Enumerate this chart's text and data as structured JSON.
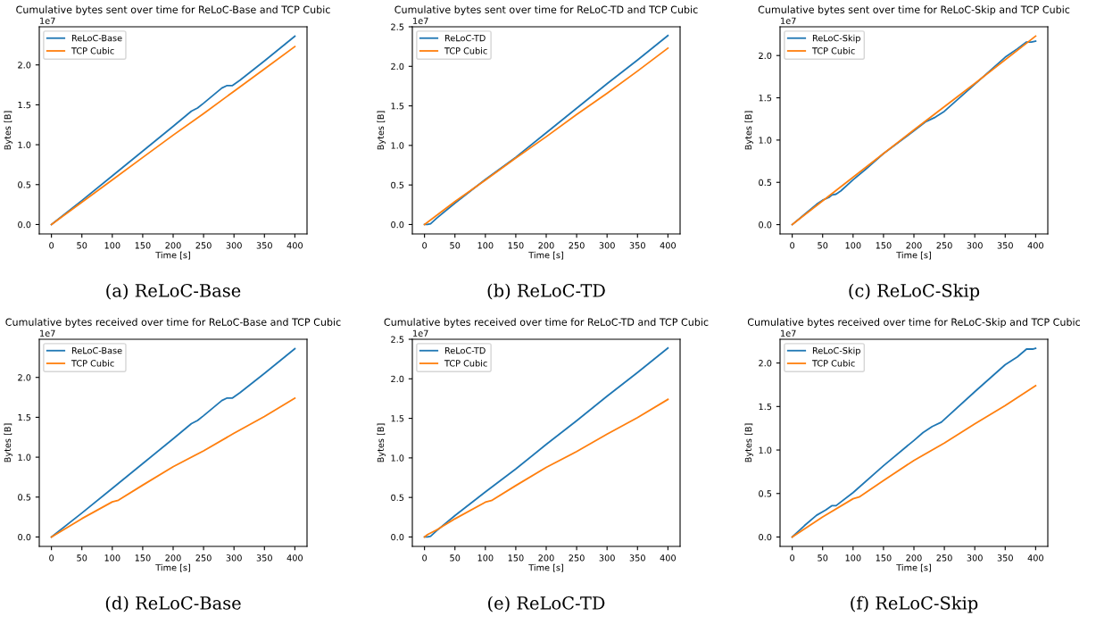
{
  "chart_data": [
    {
      "type": "line",
      "title": "Cumulative bytes sent over time for ReLoC-Base and TCP Cubic",
      "xlabel": "Time [s]",
      "ylabel": "Bytes [B]",
      "annotations": [
        "1e7",
        "(a) ReLoC-Base"
      ],
      "legend": "top left",
      "grid": false,
      "xlim": [
        -20,
        420
      ],
      "xticks": [
        0,
        50,
        100,
        150,
        200,
        250,
        300,
        350,
        400
      ],
      "ylim": [
        -0.118,
        2.478
      ],
      "yticks": [
        {
          "value": 0,
          "label": "0.0"
        },
        0.5,
        {
          "value": 1,
          "label": "1.0"
        },
        1.5,
        {
          "value": 2,
          "label": "2.0"
        }
      ],
      "series": [
        {
          "name": "ReLoC-Base",
          "color": "#1f77b4",
          "x": [
            0,
            50,
            100,
            150,
            200,
            230,
            240,
            250,
            280,
            288,
            297,
            310,
            350,
            400
          ],
          "values": [
            0,
            0.3,
            0.61,
            0.92,
            1.23,
            1.42,
            1.46,
            1.52,
            1.71,
            1.74,
            1.74,
            1.81,
            2.05,
            2.36
          ]
        },
        {
          "name": "TCP Cubic",
          "color": "#ff7f0e",
          "x": [
            0,
            50,
            100,
            150,
            200,
            250,
            300,
            350,
            400
          ],
          "values": [
            0,
            0.28,
            0.56,
            0.84,
            1.12,
            1.39,
            1.67,
            1.95,
            2.23
          ]
        }
      ]
    },
    {
      "type": "line",
      "title": "Cumulative bytes sent over time for ReLoC-TD and TCP Cubic",
      "xlabel": "Time [s]",
      "ylabel": "Bytes [B]",
      "annotations": [
        "1e7",
        "(b) ReLoC-TD"
      ],
      "legend": "top left",
      "grid": false,
      "xlim": [
        -20,
        420
      ],
      "xticks": [
        0,
        50,
        100,
        150,
        200,
        250,
        300,
        350,
        400
      ],
      "ylim": [
        -0.119,
        2.5
      ],
      "yticks": [
        {
          "value": 0,
          "label": "0.0"
        },
        0.5,
        {
          "value": 1,
          "label": "1.0"
        },
        1.5,
        {
          "value": 2,
          "label": "2.0"
        },
        2.5
      ],
      "series": [
        {
          "name": "ReLoC-TD",
          "color": "#1f77b4",
          "x": [
            0,
            5,
            10,
            20,
            50,
            100,
            150,
            200,
            250,
            300,
            350,
            400
          ],
          "values": [
            0,
            0,
            0.01,
            0.08,
            0.27,
            0.57,
            0.85,
            1.16,
            1.47,
            1.78,
            2.08,
            2.39
          ]
        },
        {
          "name": "TCP Cubic",
          "color": "#ff7f0e",
          "x": [
            0,
            50,
            100,
            150,
            200,
            250,
            300,
            350,
            400
          ],
          "values": [
            0,
            0.29,
            0.56,
            0.84,
            1.11,
            1.39,
            1.66,
            1.94,
            2.23
          ]
        }
      ]
    },
    {
      "type": "line",
      "title": "Cumulative bytes sent over time for ReLoC-Skip and TCP Cubic",
      "xlabel": "Time [s]",
      "ylabel": "Bytes [B]",
      "annotations": [
        "1e7",
        "(c) ReLoC-Skip"
      ],
      "legend": "top left",
      "grid": false,
      "xlim": [
        -20,
        420
      ],
      "xticks": [
        0,
        50,
        100,
        150,
        200,
        250,
        300,
        350,
        400
      ],
      "ylim": [
        -0.11,
        2.34
      ],
      "yticks": [
        {
          "value": 0,
          "label": "0.0"
        },
        0.5,
        {
          "value": 1,
          "label": "1.0"
        },
        1.5,
        {
          "value": 2,
          "label": "2.0"
        }
      ],
      "series": [
        {
          "name": "ReLoC-Skip",
          "color": "#1f77b4",
          "x": [
            0,
            20,
            40,
            50,
            60,
            65,
            72,
            80,
            100,
            120,
            150,
            180,
            200,
            220,
            235,
            250,
            300,
            350,
            370,
            385,
            393,
            400
          ],
          "values": [
            0,
            0.12,
            0.24,
            0.29,
            0.32,
            0.35,
            0.36,
            0.4,
            0.53,
            0.65,
            0.84,
            1.0,
            1.11,
            1.22,
            1.27,
            1.34,
            1.66,
            1.98,
            2.08,
            2.16,
            2.16,
            2.17
          ]
        },
        {
          "name": "TCP Cubic",
          "color": "#ff7f0e",
          "x": [
            0,
            100,
            200,
            300,
            400
          ],
          "values": [
            0,
            0.56,
            1.12,
            1.67,
            2.23
          ]
        }
      ]
    },
    {
      "type": "line",
      "title": "Cumulative bytes received over time for ReLoC-Base and TCP Cubic",
      "xlabel": "Time [s]",
      "ylabel": "Bytes [B]",
      "annotations": [
        "1e7",
        "(d) ReLoC-Base"
      ],
      "legend": "top left",
      "grid": false,
      "xlim": [
        -20,
        420
      ],
      "xticks": [
        0,
        50,
        100,
        150,
        200,
        250,
        300,
        350,
        400
      ],
      "ylim": [
        -0.118,
        2.478
      ],
      "yticks": [
        {
          "value": 0,
          "label": "0.0"
        },
        0.5,
        {
          "value": 1,
          "label": "1.0"
        },
        1.5,
        {
          "value": 2,
          "label": "2.0"
        }
      ],
      "series": [
        {
          "name": "ReLoC-Base",
          "color": "#1f77b4",
          "x": [
            0,
            50,
            100,
            150,
            200,
            230,
            240,
            250,
            280,
            288,
            297,
            310,
            350,
            400
          ],
          "values": [
            0,
            0.3,
            0.61,
            0.92,
            1.23,
            1.42,
            1.46,
            1.52,
            1.71,
            1.74,
            1.74,
            1.81,
            2.05,
            2.36
          ]
        },
        {
          "name": "TCP Cubic",
          "color": "#ff7f0e",
          "x": [
            0,
            50,
            100,
            110,
            150,
            200,
            250,
            300,
            350,
            400
          ],
          "values": [
            0,
            0.23,
            0.44,
            0.46,
            0.65,
            0.88,
            1.08,
            1.3,
            1.51,
            1.74
          ]
        }
      ]
    },
    {
      "type": "line",
      "title": "Cumulative bytes received over time for ReLoC-TD and TCP Cubic",
      "xlabel": "Time [s]",
      "ylabel": "Bytes [B]",
      "annotations": [
        "1e7",
        "(e) ReLoC-TD"
      ],
      "legend": "top left",
      "grid": false,
      "xlim": [
        -20,
        420
      ],
      "xticks": [
        0,
        50,
        100,
        150,
        200,
        250,
        300,
        350,
        400
      ],
      "ylim": [
        -0.119,
        2.5
      ],
      "yticks": [
        {
          "value": 0,
          "label": "0.0"
        },
        0.5,
        {
          "value": 1,
          "label": "1.0"
        },
        1.5,
        {
          "value": 2,
          "label": "2.0"
        },
        2.5
      ],
      "series": [
        {
          "name": "ReLoC-TD",
          "color": "#1f77b4",
          "x": [
            0,
            5,
            10,
            20,
            50,
            100,
            150,
            200,
            250,
            300,
            350,
            400
          ],
          "values": [
            0,
            0,
            0.01,
            0.08,
            0.27,
            0.57,
            0.86,
            1.17,
            1.47,
            1.78,
            2.08,
            2.39
          ]
        },
        {
          "name": "TCP Cubic",
          "color": "#ff7f0e",
          "x": [
            0,
            5,
            20,
            50,
            100,
            110,
            150,
            200,
            250,
            300,
            350,
            400
          ],
          "values": [
            0,
            0.03,
            0.09,
            0.23,
            0.44,
            0.46,
            0.65,
            0.88,
            1.08,
            1.3,
            1.51,
            1.74
          ]
        }
      ]
    },
    {
      "type": "line",
      "title": "Cumulative bytes received over time for ReLoC-Skip and TCP Cubic",
      "xlabel": "Time [s]",
      "ylabel": "Bytes [B]",
      "annotations": [
        "1e7",
        "(f) ReLoC-Skip"
      ],
      "legend": "top left",
      "grid": false,
      "xlim": [
        -20,
        420
      ],
      "xticks": [
        0,
        50,
        100,
        150,
        200,
        250,
        300,
        350,
        400
      ],
      "ylim": [
        -0.108,
        2.273
      ],
      "yticks": [
        {
          "value": 0,
          "label": "0.0"
        },
        0.5,
        {
          "value": 1,
          "label": "1.0"
        },
        1.5,
        {
          "value": 2,
          "label": "2.0"
        }
      ],
      "series": [
        {
          "name": "ReLoC-Skip",
          "color": "#1f77b4",
          "x": [
            0,
            20,
            40,
            55,
            65,
            72,
            100,
            150,
            200,
            215,
            230,
            245,
            300,
            350,
            370,
            385,
            395,
            400
          ],
          "values": [
            0,
            0.13,
            0.25,
            0.31,
            0.36,
            0.36,
            0.51,
            0.82,
            1.11,
            1.2,
            1.27,
            1.32,
            1.67,
            1.98,
            2.07,
            2.16,
            2.16,
            2.17
          ]
        },
        {
          "name": "TCP Cubic",
          "color": "#ff7f0e",
          "x": [
            0,
            50,
            100,
            110,
            150,
            200,
            250,
            300,
            350,
            400
          ],
          "values": [
            0,
            0.23,
            0.44,
            0.46,
            0.65,
            0.88,
            1.08,
            1.3,
            1.51,
            1.74
          ]
        }
      ]
    }
  ]
}
